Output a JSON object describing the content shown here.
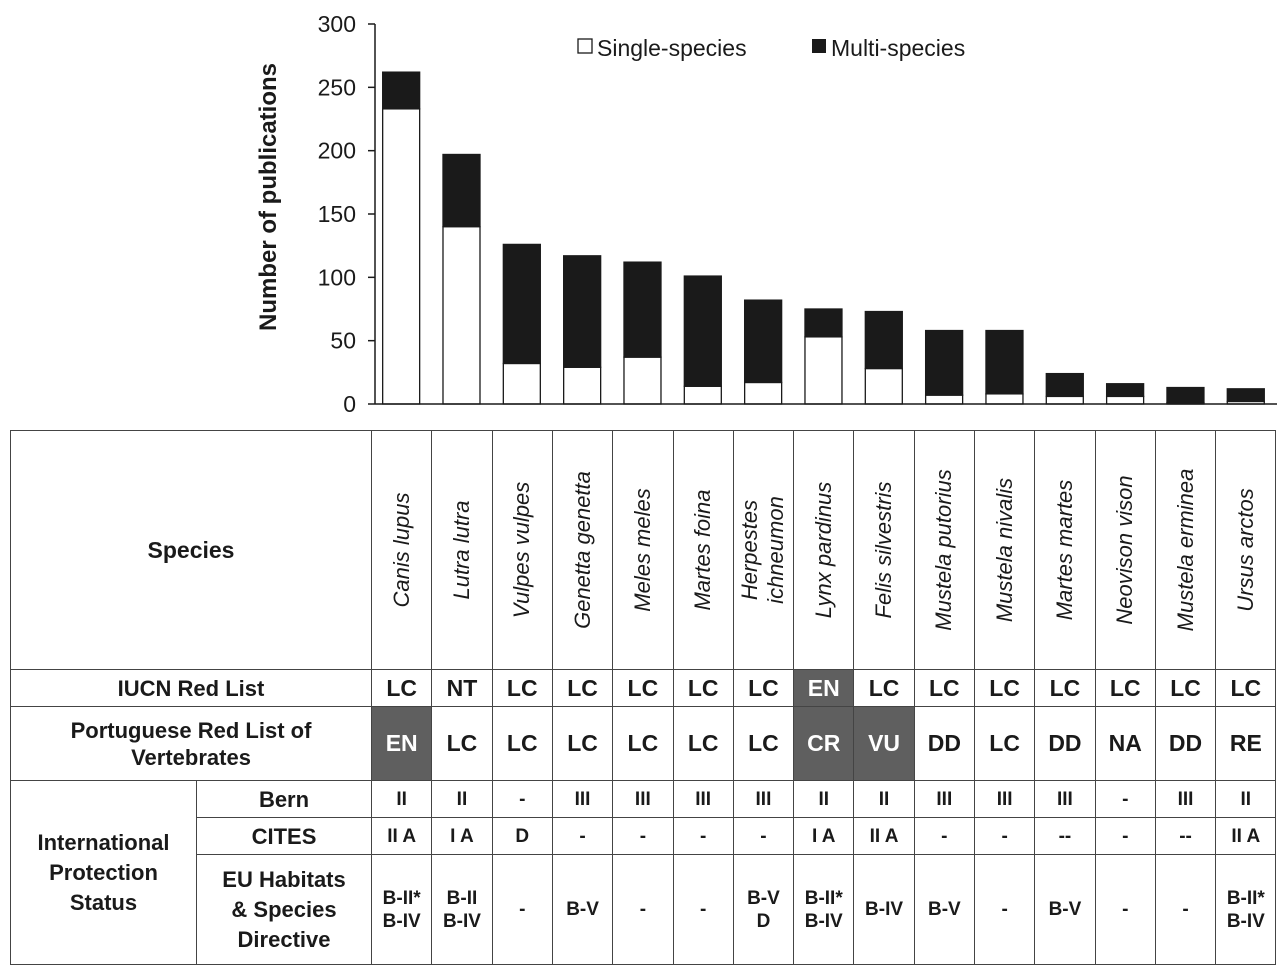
{
  "chart_data": {
    "type": "bar",
    "stacked": true,
    "ylabel": "Number of publications",
    "ylim": [
      0,
      300
    ],
    "yticks": [
      0,
      50,
      100,
      150,
      200,
      250,
      300
    ],
    "grid": false,
    "legend_position": "top",
    "categories": [
      "Canis lupus",
      "Lutra lutra",
      "Vulpes vulpes",
      "Genetta genetta",
      "Meles meles",
      "Martes foina",
      "Herpestes ichneumon",
      "Lynx pardinus",
      "Felis silvestris",
      "Mustela putorius",
      "Mustela nivalis",
      "Martes martes",
      "Neovison vison",
      "Mustela erminea",
      "Ursus arctos"
    ],
    "series": [
      {
        "name": "Single-species",
        "color": "#ffffff",
        "values": [
          233,
          140,
          32,
          29,
          37,
          14,
          17,
          53,
          28,
          7,
          8,
          6,
          6,
          1,
          2
        ]
      },
      {
        "name": "Multi-species",
        "color": "#1a1a1a",
        "values": [
          29,
          57,
          94,
          88,
          75,
          87,
          65,
          22,
          45,
          51,
          50,
          18,
          10,
          12,
          10
        ]
      }
    ]
  },
  "table": {
    "species_header": "Species",
    "species_display": [
      "Canis lupus",
      "Lutra lutra",
      "Vulpes vulpes",
      "Genetta genetta",
      "Meles meles",
      "Martes foina",
      "Herpestes\nichneumon",
      "Lynx pardinus",
      "Felis silvestris",
      "Mustela putorius",
      "Mustela nivalis",
      "Martes martes",
      "Neovison vison",
      "Mustela erminea",
      "Ursus arctos"
    ],
    "iucn_label": "IUCN Red List",
    "iucn": [
      "LC",
      "NT",
      "LC",
      "LC",
      "LC",
      "LC",
      "LC",
      "EN",
      "LC",
      "LC",
      "LC",
      "LC",
      "LC",
      "LC",
      "LC"
    ],
    "portuguese_label": "Portuguese Red List of\nVertebrates",
    "portuguese": [
      "EN",
      "LC",
      "LC",
      "LC",
      "LC",
      "LC",
      "LC",
      "CR",
      "VU",
      "DD",
      "LC",
      "DD",
      "NA",
      "DD",
      "RE"
    ],
    "protection_label": "International\nProtection\nStatus",
    "bern_label": "Bern",
    "bern": [
      "II",
      "II",
      "-",
      "III",
      "III",
      "III",
      "III",
      "II",
      "II",
      "III",
      "III",
      "III",
      "-",
      "III",
      "II"
    ],
    "cites_label": "CITES",
    "cites": [
      "II A",
      "I A",
      "D",
      "-",
      "-",
      "-",
      "-",
      "I A",
      "II A",
      "-",
      "-",
      "--",
      "-",
      "--",
      "II A"
    ],
    "eu_label": "EU Habitats\n& Species\nDirective",
    "eu": [
      "B-II*\nB-IV",
      "B-II\nB-IV",
      "-",
      "B-V",
      "-",
      "-",
      "B-V\nD",
      "B-II*\nB-IV",
      "B-IV",
      "B-V",
      "-",
      "B-V",
      "-",
      "-",
      "B-II*\nB-IV"
    ],
    "shade_color": "#5f5f5f"
  }
}
